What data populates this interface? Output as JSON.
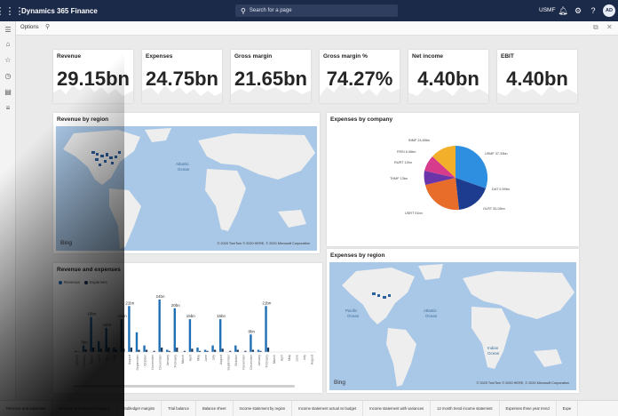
{
  "topbar": {
    "app_title": "Dynamics 365 Finance",
    "search_placeholder": "Search for a page",
    "company": "USMF",
    "user_initials": "AD"
  },
  "actionbar": {
    "options_label": "Options"
  },
  "kpis": [
    {
      "label": "Revenue",
      "value": "29.15bn"
    },
    {
      "label": "Expenses",
      "value": "24.75bn"
    },
    {
      "label": "Gross margin",
      "value": "21.65bn"
    },
    {
      "label": "Gross margin %",
      "value": "74.27%"
    },
    {
      "label": "Net income",
      "value": "4.40bn"
    },
    {
      "label": "EBIT",
      "value": "4.40bn"
    }
  ],
  "revenue_map": {
    "title": "Revenue by region",
    "ocean_label_1": "Atlantic",
    "ocean_label_2": "Ocean",
    "bing": "Bing",
    "copyright": "© 2020 TomTom © 2020 HERE, © 2020 Microsoft Corporation"
  },
  "expenses_by_company": {
    "title": "Expenses by company",
    "labels": [
      "USMF 37.33bn",
      "DAT 0.59bn",
      "GLRT 33.03bn",
      "USRT 51bn",
      "THMF 13bn",
      "RURT 12bn",
      "FRSI 6.06bn",
      "INMF 24.65bn"
    ]
  },
  "expenses_map": {
    "title": "Expenses by region",
    "atlantic_1": "Atlantic",
    "atlantic_2": "Ocean",
    "pacific_1": "Pacific",
    "pacific_2": "Ocean",
    "indian_1": "Indian",
    "indian_2": "Ocean",
    "bing": "Bing",
    "copyright": "© 2020 TomTom © 2020 HERE, © 2020 Microsoft Corporation"
  },
  "revenue_expenses": {
    "title": "Revenue and expenses",
    "legend_revenue": "Revenue",
    "legend_expenses": "Expenses"
  },
  "colors": {
    "revenue": "#1f6fb4",
    "expenses": "#17365d",
    "map_water": "#a9c7e6",
    "map_land": "#eeeeee",
    "pie": [
      "#2e8fe0",
      "#1d3c8f",
      "#e86c2a",
      "#6a35a8",
      "#d63b8c",
      "#f2b02a"
    ]
  },
  "chart_data": {
    "type": "bar",
    "title": "Revenue and expenses",
    "categories": [
      "January",
      "February",
      "March",
      "April",
      "May",
      "June",
      "July",
      "August",
      "September",
      "October",
      "November",
      "December",
      "January",
      "February",
      "March",
      "April",
      "May",
      "June",
      "July",
      "August",
      "September",
      "October",
      "November",
      "December",
      "January",
      "February",
      "March",
      "April",
      "May",
      "June",
      "July",
      "August"
    ],
    "series": [
      {
        "name": "Revenue",
        "values": [
          0.5,
          3,
          16,
          5,
          11,
          2,
          15,
          21,
          9,
          3,
          0,
          24,
          1,
          20,
          0,
          15,
          2,
          1,
          3,
          15,
          0,
          3,
          0,
          8,
          1,
          21,
          0,
          0,
          0,
          0,
          0,
          0
        ],
        "data_labels": [
          "",
          "3bn",
          "16bn",
          "",
          "11bn",
          "",
          "15bn",
          "21bn",
          "",
          "",
          "",
          "24bn",
          "",
          "20bn",
          "",
          "15bn",
          "",
          "",
          "",
          "15bn",
          "",
          "",
          "",
          "8bn",
          "",
          "21bn",
          "",
          "",
          "",
          "",
          "",
          ""
        ]
      },
      {
        "name": "Expenses",
        "values": [
          0.2,
          1.2,
          2,
          1.5,
          2,
          1,
          1.5,
          2,
          1,
          1,
          0.5,
          2,
          0.5,
          2,
          0.5,
          1.5,
          0.5,
          0.5,
          1,
          1.5,
          0.5,
          1,
          0.5,
          1,
          0.5,
          2,
          0,
          0,
          0,
          0,
          0,
          0
        ]
      }
    ],
    "legend": "top-left"
  },
  "tabs": [
    "Revenue and expenses",
    "Revenue and expense margins",
    "Subledger margins",
    "Trial balance",
    "Balance sheet",
    "Income statement by region",
    "Income statement actual vs budget",
    "Income statement with variances",
    "12 month trend income statement",
    "Expenses three year trend",
    "Expe"
  ]
}
